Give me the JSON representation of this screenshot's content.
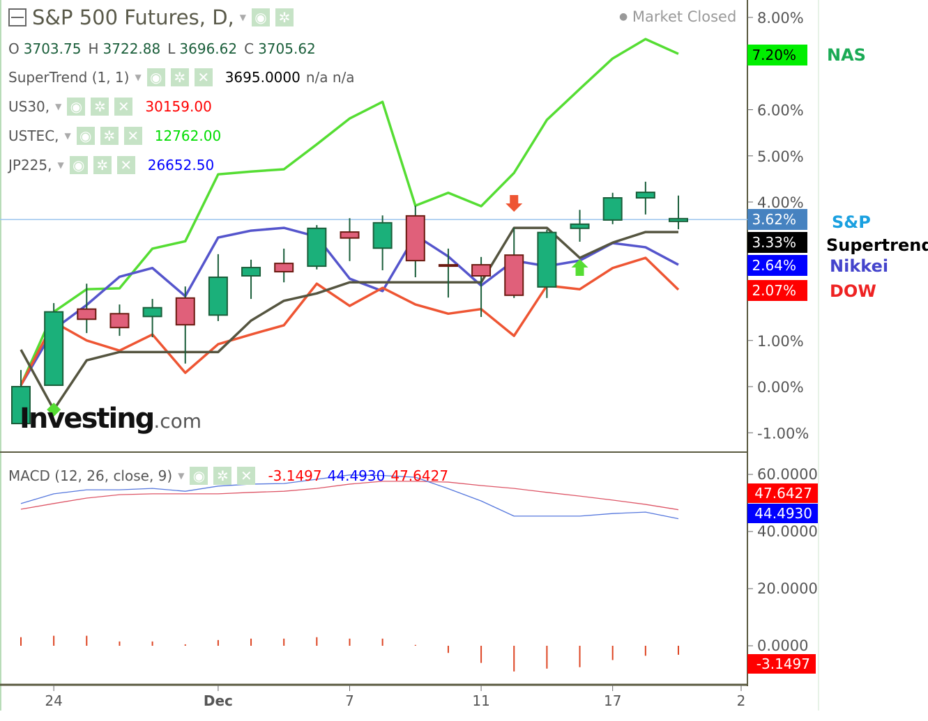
{
  "header": {
    "title": "S&P 500 Futures, D,",
    "market_status": "Market Closed",
    "ohlc": {
      "o_label": "O",
      "o": "3703.75",
      "h_label": "H",
      "h": "3722.88",
      "l_label": "L",
      "l": "3696.62",
      "c_label": "C",
      "c": "3705.62"
    },
    "indicators": [
      {
        "name": "SuperTrend (1, 1)",
        "value": "3695.0000",
        "extra": "n/a  n/a",
        "color": "#000000"
      },
      {
        "name": "US30,",
        "value": "30159.00",
        "color": "#ff0000"
      },
      {
        "name": "USTEC,",
        "value": "12762.00",
        "color": "#00dd00"
      },
      {
        "name": "JP225,",
        "value": "26652.50",
        "color": "#0000ff"
      }
    ]
  },
  "macd_header": {
    "name": "MACD (12, 26, close, 9)",
    "hist": "-3.1497",
    "macd": "44.4930",
    "signal": "47.6427"
  },
  "badges": {
    "nas": {
      "text": "7.20%",
      "bg": "#00ee00",
      "fg": "#000000"
    },
    "sp": {
      "text": "3.62%",
      "bg": "#4682c0",
      "fg": "#ffffff"
    },
    "supertrend": {
      "text": "3.33%",
      "bg": "#000000",
      "fg": "#ffffff"
    },
    "nikkei": {
      "text": "2.64%",
      "bg": "#0000ff",
      "fg": "#ffffff"
    },
    "dow": {
      "text": "2.07%",
      "bg": "#ff0000",
      "fg": "#ffffff"
    },
    "macd_signal": {
      "text": "47.6427",
      "bg": "#ff0000",
      "fg": "#ffffff"
    },
    "macd_line": {
      "text": "44.4930",
      "bg": "#0000ff",
      "fg": "#ffffff"
    },
    "macd_hist": {
      "text": "-3.1497",
      "bg": "#ff0000",
      "fg": "#ffffff"
    }
  },
  "series_labels": {
    "nas": {
      "text": "NAS",
      "color": "#1aaa55"
    },
    "sp": {
      "text": "S&P",
      "color": "#1aa0e0"
    },
    "supertrend": {
      "text": "Supertrend",
      "color": "#000000"
    },
    "nikkei": {
      "text": "Nikkei",
      "color": "#4444cc"
    },
    "dow": {
      "text": "DOW",
      "color": "#ee2222"
    }
  },
  "logo": "Investing.com",
  "chart_data": [
    {
      "type": "candlestick+line",
      "y_unit": "%",
      "ylim": [
        -1.5,
        8.4
      ],
      "yticks": [
        "8.00%",
        "6.00%",
        "5.00%",
        "4.00%",
        "1.00%",
        "0.00%",
        "-1.00%"
      ],
      "ytick_values": [
        8,
        6,
        5,
        4,
        1,
        0,
        -1
      ],
      "xticks": [
        {
          "index": 1,
          "label": "24"
        },
        {
          "index": 6,
          "label": "Dec"
        },
        {
          "index": 10,
          "label": "7"
        },
        {
          "index": 14,
          "label": "11"
        },
        {
          "index": 18,
          "label": "17"
        },
        {
          "index": 22,
          "label": "2"
        }
      ],
      "current_price_line": 3.62,
      "candles": [
        {
          "o": -0.8,
          "h": 0.36,
          "l": -0.8,
          "c": 0.0
        },
        {
          "o": 0.03,
          "h": 1.81,
          "l": 0.03,
          "c": 1.62
        },
        {
          "o": 1.68,
          "h": 2.23,
          "l": 1.16,
          "c": 1.46
        },
        {
          "o": 1.58,
          "h": 1.78,
          "l": 1.1,
          "c": 1.28
        },
        {
          "o": 1.52,
          "h": 1.9,
          "l": 1.07,
          "c": 1.71
        },
        {
          "o": 1.92,
          "h": 2.17,
          "l": 0.5,
          "c": 1.34
        },
        {
          "o": 1.55,
          "h": 2.87,
          "l": 1.42,
          "c": 2.37
        },
        {
          "o": 2.4,
          "h": 2.75,
          "l": 1.9,
          "c": 2.58
        },
        {
          "o": 2.67,
          "h": 2.99,
          "l": 2.26,
          "c": 2.49
        },
        {
          "o": 2.61,
          "h": 3.5,
          "l": 2.54,
          "c": 3.43
        },
        {
          "o": 3.35,
          "h": 3.65,
          "l": 2.72,
          "c": 3.22
        },
        {
          "o": 3.0,
          "h": 3.71,
          "l": 2.52,
          "c": 3.55
        },
        {
          "o": 3.7,
          "h": 3.92,
          "l": 2.37,
          "c": 2.73
        },
        {
          "o": 2.64,
          "h": 2.99,
          "l": 1.93,
          "c": 2.62
        },
        {
          "o": 2.64,
          "h": 2.81,
          "l": 1.51,
          "c": 2.4
        },
        {
          "o": 2.85,
          "h": 3.44,
          "l": 1.92,
          "c": 1.98
        },
        {
          "o": 2.16,
          "h": 3.4,
          "l": 1.92,
          "c": 3.34
        },
        {
          "o": 3.43,
          "h": 3.83,
          "l": 3.14,
          "c": 3.52
        },
        {
          "o": 3.61,
          "h": 4.2,
          "l": 3.52,
          "c": 4.09
        },
        {
          "o": 4.09,
          "h": 4.44,
          "l": 3.73,
          "c": 4.21
        },
        {
          "o": 3.58,
          "h": 4.14,
          "l": 3.41,
          "c": 3.64
        }
      ],
      "series": [
        {
          "name": "NAS",
          "color": "#55dd33",
          "values": [
            0.03,
            1.62,
            2.11,
            2.13,
            2.99,
            3.15,
            4.6,
            4.66,
            4.71,
            5.25,
            5.81,
            6.17,
            3.92,
            4.2,
            3.91,
            4.63,
            5.78,
            6.45,
            7.11,
            7.53,
            7.21
          ]
        },
        {
          "name": "Nikkei",
          "color": "#5555cc",
          "values": [
            0.03,
            1.24,
            1.77,
            2.38,
            2.57,
            1.96,
            3.23,
            3.38,
            3.44,
            3.25,
            2.34,
            2.07,
            3.28,
            2.82,
            2.19,
            2.73,
            2.61,
            2.73,
            3.11,
            3.02,
            2.64
          ]
        },
        {
          "name": "DOW",
          "color": "#ee5533",
          "values": [
            0.03,
            1.4,
            1.0,
            0.78,
            1.13,
            0.3,
            0.92,
            1.13,
            1.33,
            2.23,
            1.75,
            2.14,
            1.78,
            1.58,
            1.68,
            1.1,
            2.19,
            2.11,
            2.57,
            2.79,
            2.1
          ]
        },
        {
          "name": "Supertrend",
          "color": "#555540",
          "values": [
            0.8,
            -0.5,
            0.57,
            0.75,
            0.75,
            0.75,
            0.75,
            1.43,
            1.86,
            2.02,
            2.26,
            2.26,
            2.26,
            2.26,
            2.26,
            3.44,
            3.44,
            2.79,
            3.12,
            3.35,
            3.35
          ]
        }
      ],
      "signals": [
        {
          "index": 1,
          "type": "buy",
          "shape": "diamond",
          "color": "#55dd33"
        },
        {
          "index": 15,
          "type": "sell",
          "shape": "arrow-down",
          "color": "#ee5533"
        },
        {
          "index": 17,
          "type": "buy",
          "shape": "arrow-up",
          "color": "#55dd33"
        }
      ]
    },
    {
      "type": "line+histogram",
      "title": "MACD (12, 26, close, 9)",
      "ylim": [
        -10,
        67
      ],
      "yticks": [
        "60.0000",
        "40.0000",
        "20.0000",
        "0.0000"
      ],
      "ytick_values": [
        60,
        40,
        20,
        0
      ],
      "series": [
        {
          "name": "MACD",
          "color": "#5577dd",
          "values": [
            49.8,
            53.2,
            54.6,
            54.6,
            55.1,
            54.1,
            55.9,
            56.6,
            56.8,
            58.3,
            59.8,
            59.6,
            59.0,
            55.0,
            50.7,
            45.4,
            45.4,
            45.4,
            46.3,
            46.8,
            44.49
          ]
        },
        {
          "name": "Signal",
          "color": "#dd5566",
          "values": [
            47.8,
            49.8,
            51.7,
            52.9,
            53.2,
            53.2,
            53.2,
            53.7,
            54.1,
            55.1,
            56.6,
            57.6,
            57.6,
            57.3,
            56.1,
            55.1,
            53.7,
            52.4,
            51.0,
            49.5,
            47.64
          ]
        },
        {
          "name": "Histogram",
          "color": "#dd4422",
          "values": [
            3.0,
            3.5,
            3.5,
            1.5,
            1.5,
            0.5,
            2.0,
            2.5,
            2.5,
            3.0,
            2.5,
            2.5,
            0.3,
            -2.5,
            -6.0,
            -9.0,
            -8.0,
            -7.5,
            -5.0,
            -3.5,
            -3.15
          ]
        }
      ]
    }
  ]
}
